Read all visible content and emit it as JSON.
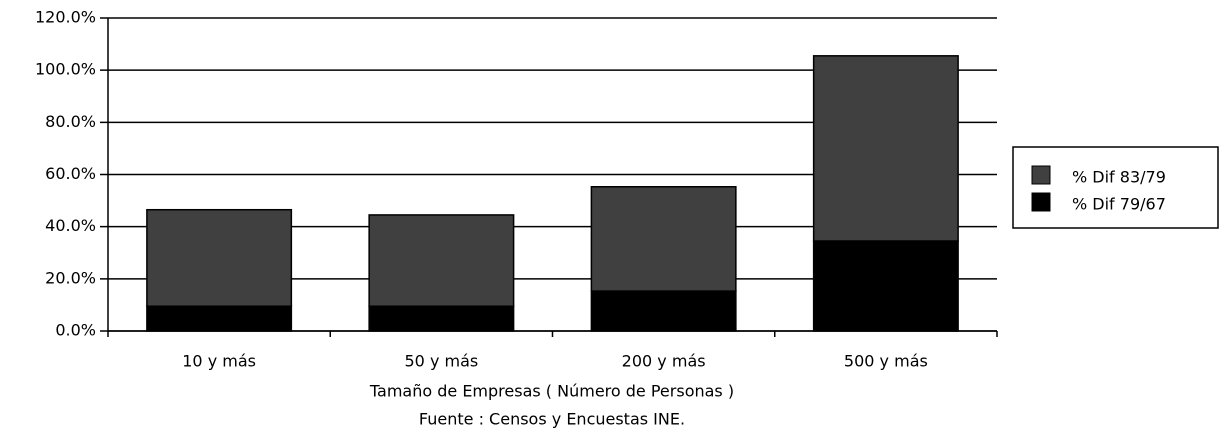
{
  "chart_data": {
    "type": "bar",
    "stacked": true,
    "x_label": "Tamaño de Empresas ( Número de Personas )",
    "source": "Fuente : Censos y Encuestas INE.",
    "categories": [
      "10 y más",
      "50 y más",
      "200 y más",
      "500 y más"
    ],
    "series": [
      {
        "name": "% Dif 79/67",
        "color": "#000000",
        "values": [
          9.5,
          9.5,
          15.3,
          34.5
        ]
      },
      {
        "name": "% Dif 83/79",
        "color": "#404040",
        "values": [
          37,
          35,
          40,
          71
        ]
      }
    ],
    "ylim": [
      0,
      120
    ],
    "yticks": [
      {
        "value": 0,
        "label": "0.0%"
      },
      {
        "value": 20,
        "label": "20.0%"
      },
      {
        "value": 40,
        "label": "40.0%"
      },
      {
        "value": 60,
        "label": "60.0%"
      },
      {
        "value": 80,
        "label": "80.0%"
      },
      {
        "value": 100,
        "label": "100.0%"
      },
      {
        "value": 120,
        "label": "120.0%"
      }
    ],
    "grid": true
  }
}
